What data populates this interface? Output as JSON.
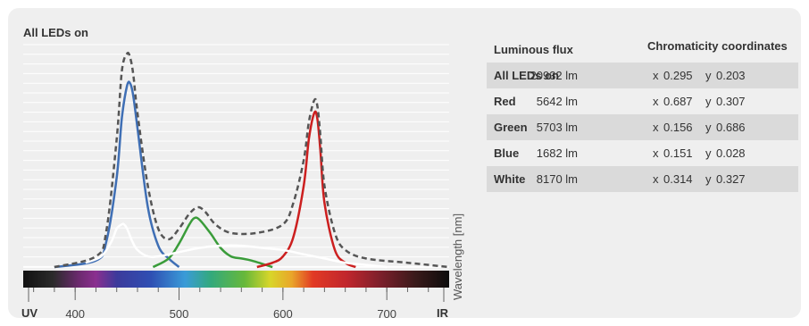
{
  "chart_data": {
    "type": "line",
    "title": "All LEDs on",
    "xlabel": "Wavelength [nm]",
    "x_ticks": [
      "400",
      "500",
      "600",
      "700"
    ],
    "x_end_labels": [
      "UV",
      "IR"
    ],
    "xlim": [
      350,
      760
    ],
    "ylim": [
      0,
      1
    ],
    "series": [
      {
        "color": "#3f6fb5",
        "dash": "solid",
        "x": [
          380,
          420,
          430,
          440,
          445,
          450,
          453,
          456,
          460,
          470,
          480,
          490,
          500
        ],
        "y": [
          0,
          0.03,
          0.12,
          0.42,
          0.7,
          0.85,
          0.86,
          0.8,
          0.65,
          0.28,
          0.1,
          0.04,
          0.0
        ]
      },
      {
        "color": "#3a9c3a",
        "dash": "solid",
        "x": [
          475,
          490,
          500,
          510,
          515,
          520,
          530,
          540,
          550,
          560,
          570,
          590
        ],
        "y": [
          0,
          0.04,
          0.11,
          0.2,
          0.23,
          0.22,
          0.16,
          0.09,
          0.05,
          0.04,
          0.03,
          0.0
        ]
      },
      {
        "color": "#cc1f1f",
        "dash": "solid",
        "x": [
          575,
          590,
          600,
          610,
          620,
          625,
          630,
          633,
          636,
          640,
          650,
          660,
          670
        ],
        "y": [
          0,
          0.02,
          0.05,
          0.14,
          0.38,
          0.6,
          0.72,
          0.7,
          0.55,
          0.3,
          0.08,
          0.02,
          0.0
        ]
      },
      {
        "color": "#ffffff",
        "dash": "solid",
        "x": [
          410,
          425,
          435,
          440,
          445,
          447,
          450,
          455,
          460,
          470,
          480,
          500,
          520,
          540,
          560,
          580,
          600,
          620,
          640,
          660,
          680,
          700
        ],
        "y": [
          0.02,
          0.05,
          0.12,
          0.18,
          0.2,
          0.2,
          0.18,
          0.12,
          0.08,
          0.05,
          0.05,
          0.07,
          0.09,
          0.1,
          0.1,
          0.09,
          0.08,
          0.06,
          0.04,
          0.02,
          0.01,
          0.0
        ]
      },
      {
        "color": "#555555",
        "dash": "dashed",
        "x": [
          380,
          420,
          430,
          440,
          445,
          450,
          453,
          456,
          460,
          470,
          480,
          490,
          500,
          510,
          518,
          525,
          535,
          550,
          575,
          600,
          610,
          620,
          625,
          630,
          633,
          636,
          640,
          650,
          660,
          680,
          720,
          760
        ],
        "y": [
          0,
          0.05,
          0.17,
          0.6,
          0.92,
          1.0,
          0.98,
          0.9,
          0.72,
          0.38,
          0.18,
          0.13,
          0.18,
          0.25,
          0.28,
          0.26,
          0.2,
          0.16,
          0.16,
          0.2,
          0.3,
          0.5,
          0.68,
          0.78,
          0.76,
          0.62,
          0.38,
          0.16,
          0.08,
          0.04,
          0.02,
          0.0
        ]
      }
    ]
  },
  "table": {
    "col1_header": "Luminous flux",
    "col2_header": "Chromaticity coordinates",
    "x_label": "x",
    "y_label": "y",
    "rows": [
      {
        "name": "All LEDs on",
        "flux": "20932 lm",
        "x": "0.295",
        "y": "0.203"
      },
      {
        "name": "Red",
        "flux": "5642 lm",
        "x": "0.687",
        "y": "0.307"
      },
      {
        "name": "Green",
        "flux": "5703 lm",
        "x": "0.156",
        "y": "0.686"
      },
      {
        "name": "Blue",
        "flux": "1682 lm",
        "x": "0.151",
        "y": "0.028"
      },
      {
        "name": "White",
        "flux": "8170 lm",
        "x": "0.314",
        "y": "0.327"
      }
    ]
  }
}
